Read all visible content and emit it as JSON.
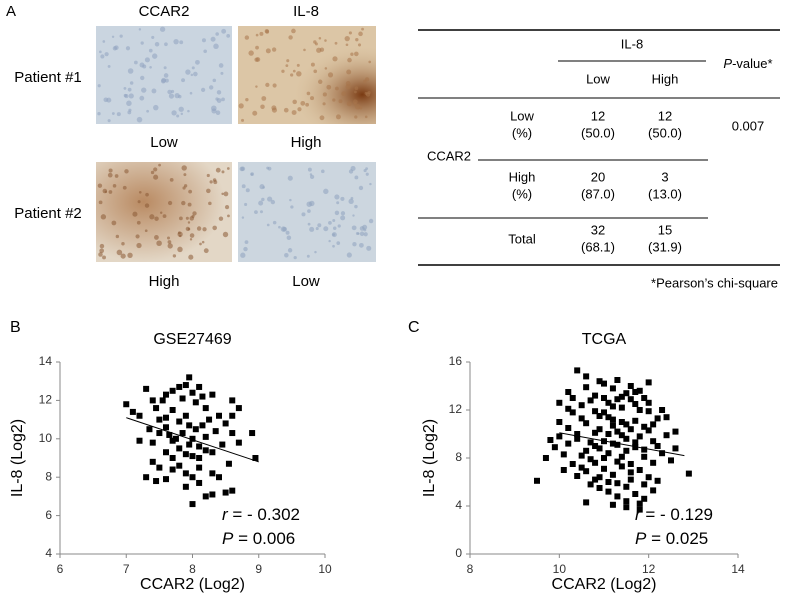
{
  "panel_a": {
    "label": "A",
    "columns": [
      "CCAR2",
      "IL-8"
    ],
    "rows": [
      {
        "label": "Patient #1",
        "levels": [
          "Low",
          "High"
        ]
      },
      {
        "label": "Patient #2",
        "levels": [
          "High",
          "Low"
        ]
      }
    ]
  },
  "table": {
    "il8_header": "IL-8",
    "columns": [
      "Low",
      "High"
    ],
    "pvalue_header": {
      "symbol": "P",
      "text": "-value*"
    },
    "row_group": "CCAR2",
    "rows": [
      {
        "label": [
          "Low",
          "(%)"
        ],
        "cells": [
          [
            "12",
            "(50.0)"
          ],
          [
            "12",
            "(50.0)"
          ]
        ],
        "pvalue": "0.007"
      },
      {
        "label": [
          "High",
          "(%)"
        ],
        "cells": [
          [
            "20",
            "(87.0)"
          ],
          [
            "3",
            "(13.0)"
          ]
        ]
      },
      {
        "label": [
          "Total"
        ],
        "cells": [
          [
            "32",
            "(68.1)"
          ],
          [
            "15",
            "(31.9)"
          ]
        ]
      }
    ],
    "footnote": "*Pearson’s chi-square"
  },
  "chart_data": [
    {
      "type": "scatter",
      "panel_label": "B",
      "title": "GSE27469",
      "x_label": "CCAR2 (Log2)",
      "y_label": "IL-8 (Log2)",
      "color": "#000000",
      "xlim": [
        6,
        10
      ],
      "ylim": [
        4,
        14
      ],
      "xticks": [
        6,
        7,
        8,
        9,
        10
      ],
      "yticks": [
        4,
        6,
        8,
        10,
        12,
        14
      ],
      "x": [
        7.0,
        7.1,
        7.2,
        7.3,
        7.4,
        7.5,
        7.6,
        7.7,
        7.8,
        7.9,
        7.95,
        8.0,
        8.1,
        8.3,
        8.6,
        8.4,
        8.2,
        7.5,
        7.4,
        7.4,
        7.6,
        7.7,
        7.8,
        7.85,
        7.9,
        7.95,
        8.0,
        8.1,
        8.2,
        8.3,
        8.35,
        8.5,
        8.6,
        8.7,
        8.9,
        8.95,
        8.6,
        8.5,
        8.2,
        8.0,
        7.9,
        7.6,
        7.5,
        7.3,
        7.45,
        7.7,
        7.8,
        7.9,
        8.0,
        8.1,
        8.3,
        8.4,
        7.6,
        7.7,
        7.8,
        8.0,
        8.1,
        8.15,
        8.25,
        7.9,
        7.7,
        7.6,
        7.55,
        8.05,
        8.15,
        7.85,
        8.45,
        8.05,
        7.65,
        7.35,
        7.2,
        8.7,
        7.95,
        8.55,
        8.1,
        7.75,
        8.3,
        8.6,
        7.45,
        8.2
      ],
      "values": [
        11.8,
        11.4,
        11.2,
        12.6,
        12.0,
        11.0,
        12.3,
        12.5,
        12.7,
        12.8,
        13.2,
        12.4,
        12.7,
        12.3,
        12.0,
        11.2,
        11.6,
        10.3,
        9.8,
        8.8,
        10.6,
        9.9,
        10.9,
        10.3,
        9.2,
        10.7,
        10.0,
        9.6,
        10.1,
        9.3,
        10.4,
        10.8,
        10.3,
        9.8,
        10.3,
        9.0,
        7.3,
        7.2,
        7.0,
        6.6,
        7.5,
        7.9,
        8.5,
        8.0,
        7.8,
        8.4,
        8.6,
        8.2,
        8.0,
        7.7,
        8.2,
        8.0,
        9.3,
        9.0,
        9.5,
        9.1,
        9.0,
        10.7,
        11.0,
        11.2,
        11.5,
        11.1,
        12.0,
        11.9,
        12.2,
        12.1,
        9.7,
        10.5,
        10.2,
        10.5,
        9.9,
        11.6,
        9.7,
        8.7,
        8.5,
        10.0,
        7.1,
        11.2,
        11.6,
        9.4
      ],
      "trendline": {
        "x": [
          7,
          9
        ],
        "values": [
          11.1,
          8.8
        ]
      },
      "annotations": [
        {
          "symbol": "r",
          "text": " = - 0.302"
        },
        {
          "symbol": "P",
          "text": " =  0.006"
        }
      ]
    },
    {
      "type": "scatter",
      "panel_label": "C",
      "title": "TCGA",
      "x_label": "CCAR2 (Log2)",
      "y_label": "IL-8 (Log2)",
      "color": "#000000",
      "xlim": [
        8,
        14
      ],
      "ylim": [
        0,
        16
      ],
      "xticks": [
        8,
        10,
        12,
        14
      ],
      "yticks": [
        0,
        4,
        8,
        12,
        16
      ],
      "x": [
        10.2,
        10.4,
        10.6,
        11.0,
        11.3,
        11.6,
        11.2,
        10.8,
        11.5,
        11.9,
        12.3,
        12.6,
        12.9,
        9.5,
        10.0,
        10.1,
        10.3,
        10.5,
        10.7,
        10.9,
        11.1,
        11.4,
        11.7,
        12.0,
        12.1,
        10.2,
        10.4,
        10.6,
        10.8,
        11.0,
        11.2,
        11.4,
        11.6,
        11.8,
        12.0,
        12.2,
        10.3,
        10.5,
        10.7,
        10.9,
        11.1,
        11.3,
        11.5,
        11.7,
        11.9,
        12.1,
        12.3,
        10.4,
        10.6,
        10.8,
        11.0,
        11.2,
        11.4,
        11.6,
        11.8,
        12.0,
        12.2,
        10.9,
        11.1,
        11.3,
        11.5,
        11.7,
        11.9,
        11.2,
        11.5,
        10.6,
        11.8,
        12.1,
        10.7,
        10.1,
        9.9,
        10.0,
        10.2,
        10.5,
        10.7,
        10.9,
        11.1,
        11.3,
        11.5,
        11.7,
        11.9,
        12.1,
        12.4,
        12.5,
        11.0,
        11.3,
        11.6,
        11.8,
        12.0,
        10.6,
        10.9,
        11.4,
        11.7,
        11.1,
        11.2,
        11.4,
        11.3,
        11.6,
        11.5,
        11.0,
        10.8,
        11.8,
        11.2,
        10.6,
        10.4,
        10.2,
        10.8,
        11.0,
        11.9,
        12.2,
        10.5,
        11.6,
        11.1,
        10.8,
        11.7,
        11.4,
        11.2,
        11.9,
        12.0,
        10.3,
        10.0,
        9.8,
        9.7,
        12.6,
        12.4,
        11.5,
        11.3,
        10.9,
        11.8
      ],
      "values": [
        13.5,
        15.3,
        14.8,
        14.2,
        14.5,
        14.0,
        13.8,
        13.2,
        13.4,
        13.0,
        12.0,
        10.2,
        6.7,
        6.1,
        9.8,
        8.3,
        11.8,
        12.4,
        12.8,
        11.5,
        12.6,
        12.2,
        12.5,
        11.9,
        10.8,
        10.5,
        9.6,
        10.9,
        10.1,
        9.4,
        10.7,
        11.0,
        10.4,
        9.8,
        10.3,
        9.0,
        7.5,
        8.2,
        7.9,
        8.8,
        8.4,
        9.1,
        8.6,
        8.9,
        8.1,
        7.6,
        8.4,
        6.5,
        6.9,
        6.2,
        7.1,
        6.6,
        7.3,
        6.8,
        7.0,
        6.4,
        6.1,
        5.5,
        5.2,
        4.8,
        5.6,
        5.0,
        4.6,
        4.1,
        3.9,
        4.3,
        3.7,
        5.3,
        5.8,
        7.0,
        8.9,
        11.0,
        12.1,
        11.3,
        9.3,
        10.4,
        11.4,
        10.2,
        9.6,
        11.1,
        10.6,
        9.4,
        9.9,
        7.8,
        13.0,
        12.9,
        12.9,
        13.6,
        14.3,
        13.9,
        14.4,
        13.1,
        13.5,
        10.0,
        9.2,
        8.1,
        7.7,
        7.5,
        10.8,
        11.8,
        11.9,
        12.0,
        12.3,
        8.6,
        10.0,
        9.2,
        9.0,
        8.0,
        8.7,
        11.3,
        7.2,
        6.2,
        6.0,
        7.6,
        9.3,
        9.9,
        11.2,
        5.8,
        12.6,
        13.0,
        12.6,
        9.5,
        8.0,
        8.8,
        11.4,
        4.4,
        5.9,
        6.4,
        4.2
      ],
      "trendline": {
        "x": [
          10,
          12.8
        ],
        "values": [
          10.1,
          8.2
        ]
      },
      "annotations": [
        {
          "symbol": "r",
          "text": " = - 0.129"
        },
        {
          "symbol": "P",
          "text": " =  0.025"
        }
      ]
    }
  ]
}
